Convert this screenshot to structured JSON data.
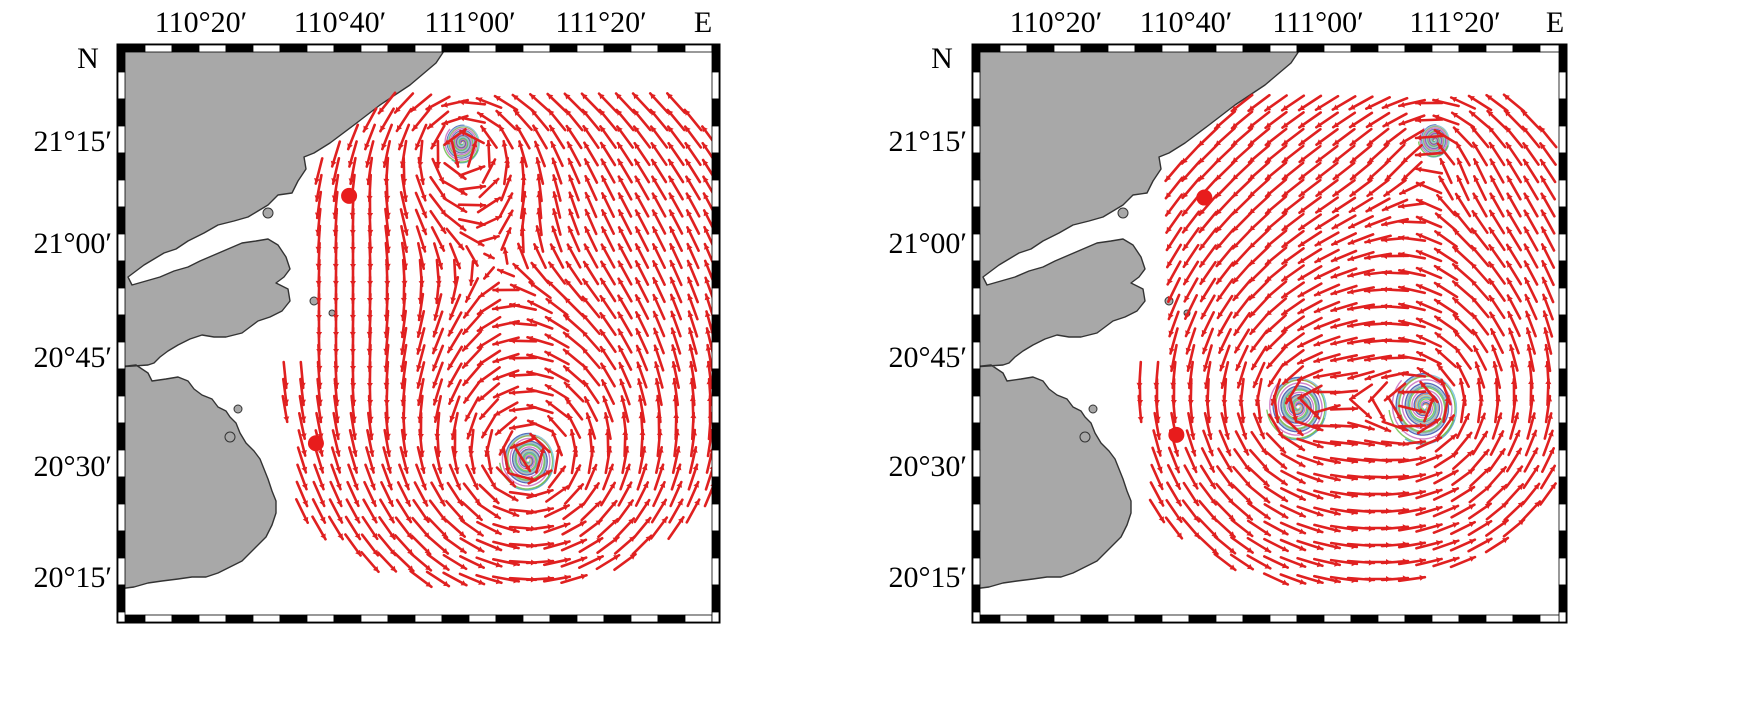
{
  "colors": {
    "land": "#a8a8a8",
    "coastline": "#333333",
    "sea": "#ffffff",
    "current_vector": "#e02020",
    "station_marker": "#e81c1c",
    "frame": "#000000",
    "trajectory_palette": [
      "#d9a441",
      "#4aa0c8",
      "#6cc04a",
      "#c86cc0",
      "#3a50b0",
      "#e07b39",
      "#8fd3e8"
    ]
  },
  "panels": [
    {
      "id": "left",
      "lon_labels": [
        "110°20′",
        "110°40′",
        "111°00′",
        "111°20′"
      ],
      "lat_labels": [
        "21°15′",
        "21°00′",
        "20°45′",
        "20°30′",
        "20°15′"
      ],
      "north_label": "N",
      "east_label": "E",
      "stations": [
        {
          "lon": 110.713,
          "lat": 21.117
        },
        {
          "lon": 110.628,
          "lat": 20.528
        }
      ],
      "eddies": [
        {
          "lon": 111.003,
          "lat": 21.243,
          "radius": 0.053
        },
        {
          "lon": 111.172,
          "lat": 20.488,
          "radius": 0.08
        }
      ]
    },
    {
      "id": "right",
      "lon_labels": [
        "110°20′",
        "110°40′",
        "111°00′",
        "111°20′"
      ],
      "lat_labels": [
        "21°15′",
        "21°00′",
        "20°45′",
        "20°30′",
        "20°15′"
      ],
      "north_label": "N",
      "east_label": "E",
      "stations": [
        {
          "lon": 110.705,
          "lat": 21.113
        },
        {
          "lon": 110.635,
          "lat": 20.548
        }
      ],
      "eddies": [
        {
          "lon": 111.282,
          "lat": 21.25,
          "radius": 0.045
        },
        {
          "lon": 110.94,
          "lat": 20.615,
          "radius": 0.088
        },
        {
          "lon": 111.257,
          "lat": 20.615,
          "radius": 0.1
        }
      ]
    }
  ]
}
